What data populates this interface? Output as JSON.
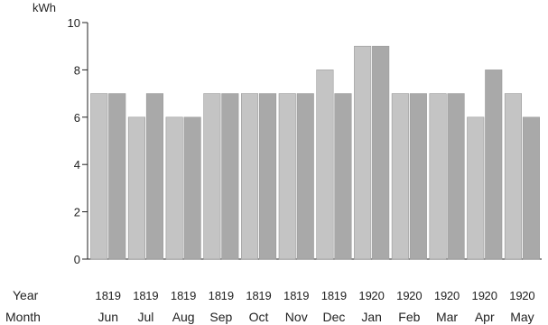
{
  "chart_data": {
    "type": "bar",
    "ylabel": "kWh",
    "ylim": [
      0,
      10
    ],
    "yticks": [
      0,
      2,
      4,
      6,
      8,
      10
    ],
    "row_labels": {
      "year": "Year",
      "month": "Month"
    },
    "categories": [
      "Jun",
      "Jul",
      "Aug",
      "Sep",
      "Oct",
      "Nov",
      "Dec",
      "Jan",
      "Feb",
      "Mar",
      "Apr",
      "May"
    ],
    "pairs": [
      {
        "month": "Jun",
        "years": [
          "18",
          "19"
        ],
        "values": [
          7,
          7
        ]
      },
      {
        "month": "Jul",
        "years": [
          "18",
          "19"
        ],
        "values": [
          6,
          7
        ]
      },
      {
        "month": "Aug",
        "years": [
          "18",
          "19"
        ],
        "values": [
          6,
          6
        ]
      },
      {
        "month": "Sep",
        "years": [
          "18",
          "19"
        ],
        "values": [
          7,
          7
        ]
      },
      {
        "month": "Oct",
        "years": [
          "18",
          "19"
        ],
        "values": [
          7,
          7
        ]
      },
      {
        "month": "Nov",
        "years": [
          "18",
          "19"
        ],
        "values": [
          7,
          7
        ]
      },
      {
        "month": "Dec",
        "years": [
          "18",
          "19"
        ],
        "values": [
          8,
          7
        ]
      },
      {
        "month": "Jan",
        "years": [
          "19",
          "20"
        ],
        "values": [
          9,
          9
        ]
      },
      {
        "month": "Feb",
        "years": [
          "19",
          "20"
        ],
        "values": [
          7,
          7
        ]
      },
      {
        "month": "Mar",
        "years": [
          "19",
          "20"
        ],
        "values": [
          7,
          7
        ]
      },
      {
        "month": "Apr",
        "years": [
          "19",
          "20"
        ],
        "values": [
          6,
          8
        ]
      },
      {
        "month": "May",
        "years": [
          "19",
          "20"
        ],
        "values": [
          7,
          6
        ]
      }
    ],
    "colors": {
      "previous_year_bar": "#c4c4c4",
      "current_year_bar": "#a9a9a9",
      "axis": "#222222"
    },
    "grid": false,
    "legend": "none"
  }
}
